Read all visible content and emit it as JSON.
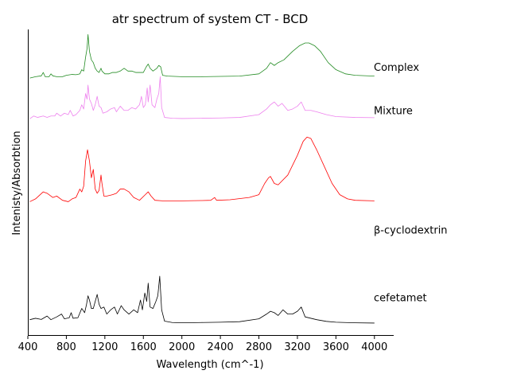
{
  "chart_data": {
    "type": "line",
    "title": "atr spectrum of system CT - BCD",
    "xlabel": "Wavelength (cm^-1)",
    "ylabel": "Intenisty/Absorbtion",
    "xlim": [
      400,
      4200
    ],
    "ylim": [
      0,
      100
    ],
    "xticks": [
      400,
      800,
      1200,
      1600,
      2000,
      2400,
      2800,
      3200,
      3600,
      4000
    ],
    "ytick_labels": false,
    "grid": false,
    "legend": "labels placed at right end of each trace",
    "series": [
      {
        "name": "cefetamet",
        "color": "#000000",
        "label_y": 9.5,
        "points": [
          [
            420,
            1.5
          ],
          [
            480,
            2.0
          ],
          [
            540,
            1.6
          ],
          [
            600,
            2.8
          ],
          [
            640,
            1.5
          ],
          [
            700,
            2.5
          ],
          [
            750,
            3.5
          ],
          [
            780,
            1.8
          ],
          [
            830,
            2.2
          ],
          [
            850,
            4.0
          ],
          [
            870,
            2.0
          ],
          [
            920,
            2.2
          ],
          [
            960,
            5.5
          ],
          [
            990,
            4.0
          ],
          [
            1010,
            7.0
          ],
          [
            1025,
            10.0
          ],
          [
            1040,
            8.5
          ],
          [
            1060,
            5.5
          ],
          [
            1080,
            5.5
          ],
          [
            1100,
            8.0
          ],
          [
            1120,
            10.5
          ],
          [
            1140,
            7.0
          ],
          [
            1160,
            5.5
          ],
          [
            1190,
            6.0
          ],
          [
            1220,
            3.5
          ],
          [
            1260,
            5.0
          ],
          [
            1300,
            6.0
          ],
          [
            1330,
            3.5
          ],
          [
            1370,
            6.5
          ],
          [
            1400,
            5.0
          ],
          [
            1450,
            3.5
          ],
          [
            1500,
            5.0
          ],
          [
            1540,
            4.0
          ],
          [
            1570,
            8.5
          ],
          [
            1590,
            5.0
          ],
          [
            1615,
            11.0
          ],
          [
            1635,
            8.0
          ],
          [
            1650,
            14.5
          ],
          [
            1670,
            6.0
          ],
          [
            1700,
            5.5
          ],
          [
            1730,
            8.0
          ],
          [
            1750,
            10.0
          ],
          [
            1770,
            17.0
          ],
          [
            1790,
            5.0
          ],
          [
            1820,
            1.0
          ],
          [
            1900,
            0.5
          ],
          [
            2000,
            0.4
          ],
          [
            2200,
            0.5
          ],
          [
            2400,
            0.6
          ],
          [
            2600,
            0.8
          ],
          [
            2800,
            1.8
          ],
          [
            2880,
            3.5
          ],
          [
            2920,
            4.5
          ],
          [
            2960,
            4.0
          ],
          [
            3000,
            3.0
          ],
          [
            3050,
            5.0
          ],
          [
            3100,
            3.5
          ],
          [
            3150,
            3.5
          ],
          [
            3200,
            4.5
          ],
          [
            3240,
            6.0
          ],
          [
            3280,
            2.5
          ],
          [
            3340,
            2.0
          ],
          [
            3400,
            1.5
          ],
          [
            3500,
            0.9
          ],
          [
            3600,
            0.6
          ],
          [
            3800,
            0.4
          ],
          [
            4000,
            0.3
          ]
        ]
      },
      {
        "name": "β-cyclodextrin",
        "color": "#ff0000",
        "label_y": 33.5,
        "points": [
          [
            420,
            43.5
          ],
          [
            480,
            44.5
          ],
          [
            560,
            47.0
          ],
          [
            600,
            46.5
          ],
          [
            660,
            45.0
          ],
          [
            700,
            45.5
          ],
          [
            760,
            44.0
          ],
          [
            820,
            43.5
          ],
          [
            860,
            44.5
          ],
          [
            900,
            45.0
          ],
          [
            940,
            48.0
          ],
          [
            960,
            47.0
          ],
          [
            980,
            49.0
          ],
          [
            1000,
            58.0
          ],
          [
            1020,
            62.0
          ],
          [
            1040,
            58.0
          ],
          [
            1060,
            52.0
          ],
          [
            1080,
            55.0
          ],
          [
            1100,
            48.0
          ],
          [
            1120,
            46.5
          ],
          [
            1140,
            47.5
          ],
          [
            1160,
            53.0
          ],
          [
            1170,
            50.0
          ],
          [
            1190,
            45.5
          ],
          [
            1220,
            45.5
          ],
          [
            1280,
            46.0
          ],
          [
            1320,
            46.5
          ],
          [
            1360,
            48.0
          ],
          [
            1400,
            48.0
          ],
          [
            1450,
            47.0
          ],
          [
            1500,
            45.0
          ],
          [
            1560,
            44.0
          ],
          [
            1620,
            46.0
          ],
          [
            1650,
            47.0
          ],
          [
            1680,
            45.5
          ],
          [
            1720,
            44.0
          ],
          [
            1800,
            43.8
          ],
          [
            1900,
            43.8
          ],
          [
            2000,
            43.8
          ],
          [
            2200,
            43.9
          ],
          [
            2300,
            44.0
          ],
          [
            2340,
            45.0
          ],
          [
            2360,
            44.0
          ],
          [
            2500,
            44.2
          ],
          [
            2700,
            45.0
          ],
          [
            2800,
            46.0
          ],
          [
            2860,
            50.0
          ],
          [
            2900,
            52.0
          ],
          [
            2920,
            52.5
          ],
          [
            2960,
            50.0
          ],
          [
            3000,
            49.5
          ],
          [
            3100,
            53.0
          ],
          [
            3200,
            60.0
          ],
          [
            3260,
            65.0
          ],
          [
            3300,
            66.5
          ],
          [
            3340,
            66.0
          ],
          [
            3400,
            62.0
          ],
          [
            3480,
            56.0
          ],
          [
            3560,
            50.0
          ],
          [
            3640,
            46.0
          ],
          [
            3720,
            44.5
          ],
          [
            3800,
            44.0
          ],
          [
            4000,
            43.8
          ]
        ]
      },
      {
        "name": "Mixture",
        "color": "#ee82ee",
        "label_y": 76.0,
        "points": [
          [
            420,
            73.0
          ],
          [
            460,
            74.0
          ],
          [
            500,
            73.5
          ],
          [
            560,
            74.0
          ],
          [
            600,
            73.5
          ],
          [
            640,
            74.0
          ],
          [
            680,
            74.0
          ],
          [
            700,
            75.0
          ],
          [
            740,
            74.0
          ],
          [
            780,
            75.0
          ],
          [
            820,
            74.5
          ],
          [
            840,
            76.0
          ],
          [
            870,
            74.0
          ],
          [
            900,
            74.5
          ],
          [
            940,
            76.0
          ],
          [
            960,
            78.0
          ],
          [
            980,
            76.5
          ],
          [
            1000,
            82.0
          ],
          [
            1015,
            80.0
          ],
          [
            1025,
            85.0
          ],
          [
            1040,
            80.0
          ],
          [
            1060,
            78.5
          ],
          [
            1080,
            76.0
          ],
          [
            1100,
            78.0
          ],
          [
            1120,
            81.0
          ],
          [
            1140,
            77.5
          ],
          [
            1160,
            77.0
          ],
          [
            1180,
            75.0
          ],
          [
            1220,
            75.5
          ],
          [
            1260,
            76.5
          ],
          [
            1300,
            77.0
          ],
          [
            1320,
            75.5
          ],
          [
            1360,
            77.5
          ],
          [
            1400,
            76.0
          ],
          [
            1440,
            76.0
          ],
          [
            1480,
            77.0
          ],
          [
            1520,
            76.5
          ],
          [
            1560,
            78.0
          ],
          [
            1580,
            81.0
          ],
          [
            1600,
            77.0
          ],
          [
            1620,
            78.0
          ],
          [
            1640,
            84.0
          ],
          [
            1650,
            79.0
          ],
          [
            1670,
            85.0
          ],
          [
            1690,
            78.0
          ],
          [
            1720,
            77.0
          ],
          [
            1740,
            80.0
          ],
          [
            1760,
            82.0
          ],
          [
            1775,
            88.0
          ],
          [
            1790,
            77.0
          ],
          [
            1820,
            73.5
          ],
          [
            1900,
            73.2
          ],
          [
            2000,
            73.1
          ],
          [
            2200,
            73.2
          ],
          [
            2400,
            73.3
          ],
          [
            2600,
            73.5
          ],
          [
            2800,
            74.5
          ],
          [
            2880,
            76.5
          ],
          [
            2920,
            78.0
          ],
          [
            2960,
            79.0
          ],
          [
            3000,
            77.5
          ],
          [
            3040,
            78.5
          ],
          [
            3100,
            76.0
          ],
          [
            3150,
            76.5
          ],
          [
            3200,
            77.5
          ],
          [
            3240,
            79.0
          ],
          [
            3280,
            76.0
          ],
          [
            3340,
            76.0
          ],
          [
            3400,
            75.5
          ],
          [
            3500,
            74.5
          ],
          [
            3600,
            73.8
          ],
          [
            3800,
            73.5
          ],
          [
            4000,
            73.4
          ]
        ]
      },
      {
        "name": "Complex",
        "color": "#228b22",
        "label_y": 91.5,
        "points": [
          [
            420,
            87.5
          ],
          [
            480,
            88.0
          ],
          [
            540,
            88.3
          ],
          [
            560,
            89.5
          ],
          [
            580,
            88.0
          ],
          [
            620,
            88.0
          ],
          [
            640,
            89.0
          ],
          [
            660,
            88.3
          ],
          [
            700,
            88.0
          ],
          [
            760,
            88.0
          ],
          [
            800,
            88.5
          ],
          [
            860,
            88.8
          ],
          [
            900,
            88.7
          ],
          [
            940,
            89.0
          ],
          [
            960,
            90.5
          ],
          [
            980,
            90.0
          ],
          [
            1000,
            95.0
          ],
          [
            1015,
            98.0
          ],
          [
            1025,
            103.0
          ],
          [
            1040,
            97.0
          ],
          [
            1060,
            94.0
          ],
          [
            1080,
            93.0
          ],
          [
            1100,
            91.0
          ],
          [
            1120,
            90.0
          ],
          [
            1140,
            89.5
          ],
          [
            1160,
            91.0
          ],
          [
            1170,
            90.0
          ],
          [
            1200,
            89.0
          ],
          [
            1240,
            89.0
          ],
          [
            1280,
            89.5
          ],
          [
            1320,
            89.5
          ],
          [
            1360,
            90.0
          ],
          [
            1400,
            91.0
          ],
          [
            1440,
            90.0
          ],
          [
            1480,
            90.0
          ],
          [
            1520,
            89.5
          ],
          [
            1560,
            89.5
          ],
          [
            1600,
            89.5
          ],
          [
            1630,
            91.5
          ],
          [
            1650,
            92.5
          ],
          [
            1670,
            91.0
          ],
          [
            1700,
            90.0
          ],
          [
            1740,
            91.0
          ],
          [
            1760,
            92.0
          ],
          [
            1780,
            91.5
          ],
          [
            1800,
            88.5
          ],
          [
            1850,
            88.2
          ],
          [
            2000,
            88.0
          ],
          [
            2200,
            88.0
          ],
          [
            2400,
            88.1
          ],
          [
            2600,
            88.2
          ],
          [
            2800,
            89.0
          ],
          [
            2880,
            91.0
          ],
          [
            2920,
            93.0
          ],
          [
            2960,
            92.0
          ],
          [
            3000,
            93.0
          ],
          [
            3060,
            94.0
          ],
          [
            3150,
            97.0
          ],
          [
            3220,
            99.0
          ],
          [
            3280,
            100.0
          ],
          [
            3320,
            100.0
          ],
          [
            3380,
            99.0
          ],
          [
            3440,
            97.0
          ],
          [
            3520,
            93.0
          ],
          [
            3600,
            90.5
          ],
          [
            3700,
            89.0
          ],
          [
            3800,
            88.5
          ],
          [
            4000,
            88.2
          ]
        ]
      }
    ]
  }
}
